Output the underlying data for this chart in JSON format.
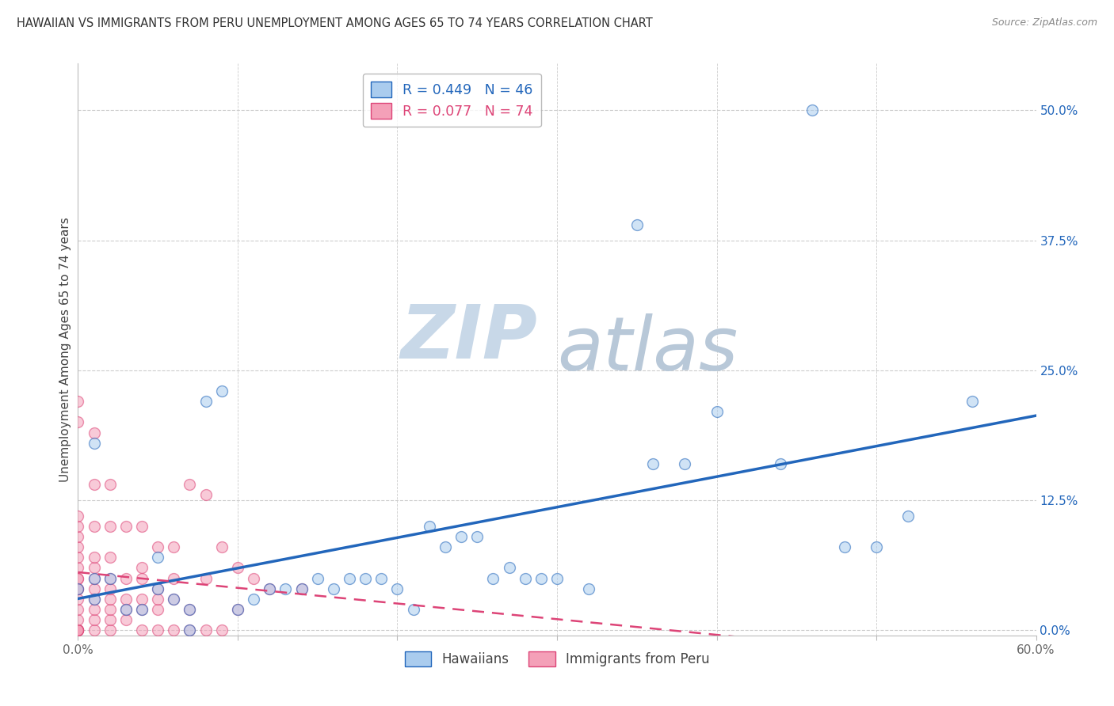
{
  "title": "HAWAIIAN VS IMMIGRANTS FROM PERU UNEMPLOYMENT AMONG AGES 65 TO 74 YEARS CORRELATION CHART",
  "source": "Source: ZipAtlas.com",
  "ylabel": "Unemployment Among Ages 65 to 74 years",
  "legend_label_1": "Hawaiians",
  "legend_label_2": "Immigrants from Peru",
  "r1": 0.449,
  "n1": 46,
  "r2": 0.077,
  "n2": 74,
  "color1": "#aaccee",
  "color2": "#f4a0b8",
  "line_color1": "#2266bb",
  "line_color2": "#dd4477",
  "xlim": [
    0.0,
    0.6
  ],
  "ylim": [
    -0.005,
    0.545
  ],
  "xticks": [
    0.0,
    0.1,
    0.2,
    0.3,
    0.4,
    0.5,
    0.6
  ],
  "xticklabels": [
    "0.0%",
    "",
    "",
    "",
    "",
    "",
    "60.0%"
  ],
  "yticks_right": [
    0.0,
    0.125,
    0.25,
    0.375,
    0.5
  ],
  "yticklabels_right": [
    "0.0%",
    "12.5%",
    "25.0%",
    "37.5%",
    "50.0%"
  ],
  "hawaiians_x": [
    0.0,
    0.01,
    0.01,
    0.01,
    0.02,
    0.03,
    0.04,
    0.05,
    0.05,
    0.06,
    0.07,
    0.07,
    0.08,
    0.09,
    0.1,
    0.11,
    0.12,
    0.13,
    0.14,
    0.15,
    0.16,
    0.17,
    0.18,
    0.19,
    0.2,
    0.21,
    0.22,
    0.23,
    0.24,
    0.25,
    0.26,
    0.27,
    0.28,
    0.29,
    0.3,
    0.32,
    0.35,
    0.36,
    0.38,
    0.4,
    0.44,
    0.46,
    0.48,
    0.5,
    0.52,
    0.56
  ],
  "hawaiians_y": [
    0.04,
    0.03,
    0.05,
    0.18,
    0.05,
    0.02,
    0.02,
    0.04,
    0.07,
    0.03,
    0.0,
    0.02,
    0.22,
    0.23,
    0.02,
    0.03,
    0.04,
    0.04,
    0.04,
    0.05,
    0.04,
    0.05,
    0.05,
    0.05,
    0.04,
    0.02,
    0.1,
    0.08,
    0.09,
    0.09,
    0.05,
    0.06,
    0.05,
    0.05,
    0.05,
    0.04,
    0.39,
    0.16,
    0.16,
    0.21,
    0.16,
    0.5,
    0.08,
    0.08,
    0.11,
    0.22
  ],
  "peru_x": [
    0.0,
    0.0,
    0.0,
    0.0,
    0.0,
    0.0,
    0.0,
    0.0,
    0.0,
    0.0,
    0.0,
    0.0,
    0.0,
    0.0,
    0.0,
    0.0,
    0.0,
    0.0,
    0.0,
    0.0,
    0.0,
    0.01,
    0.01,
    0.01,
    0.01,
    0.01,
    0.01,
    0.01,
    0.01,
    0.01,
    0.01,
    0.01,
    0.02,
    0.02,
    0.02,
    0.02,
    0.02,
    0.02,
    0.02,
    0.02,
    0.02,
    0.03,
    0.03,
    0.03,
    0.03,
    0.03,
    0.04,
    0.04,
    0.04,
    0.04,
    0.04,
    0.04,
    0.05,
    0.05,
    0.05,
    0.05,
    0.05,
    0.06,
    0.06,
    0.06,
    0.06,
    0.07,
    0.07,
    0.07,
    0.08,
    0.08,
    0.08,
    0.09,
    0.09,
    0.1,
    0.1,
    0.11,
    0.12,
    0.14
  ],
  "peru_y": [
    0.0,
    0.0,
    0.0,
    0.0,
    0.0,
    0.0,
    0.01,
    0.02,
    0.03,
    0.04,
    0.05,
    0.06,
    0.07,
    0.08,
    0.09,
    0.1,
    0.11,
    0.2,
    0.22,
    0.04,
    0.05,
    0.0,
    0.01,
    0.02,
    0.03,
    0.04,
    0.05,
    0.06,
    0.07,
    0.1,
    0.14,
    0.19,
    0.0,
    0.01,
    0.02,
    0.03,
    0.04,
    0.05,
    0.07,
    0.1,
    0.14,
    0.01,
    0.02,
    0.03,
    0.05,
    0.1,
    0.0,
    0.02,
    0.03,
    0.05,
    0.06,
    0.1,
    0.0,
    0.02,
    0.03,
    0.04,
    0.08,
    0.0,
    0.03,
    0.05,
    0.08,
    0.0,
    0.02,
    0.14,
    0.0,
    0.05,
    0.13,
    0.0,
    0.08,
    0.02,
    0.06,
    0.05,
    0.04,
    0.04
  ],
  "watermark_zip": "ZIP",
  "watermark_atlas": "atlas",
  "watermark_color_zip": "#c8d8e8",
  "watermark_color_atlas": "#b8c8d8",
  "background_color": "#ffffff",
  "grid_color": "#cccccc",
  "title_color": "#333333",
  "source_color": "#888888",
  "axis_label_color": "#444444",
  "tick_color": "#666666"
}
